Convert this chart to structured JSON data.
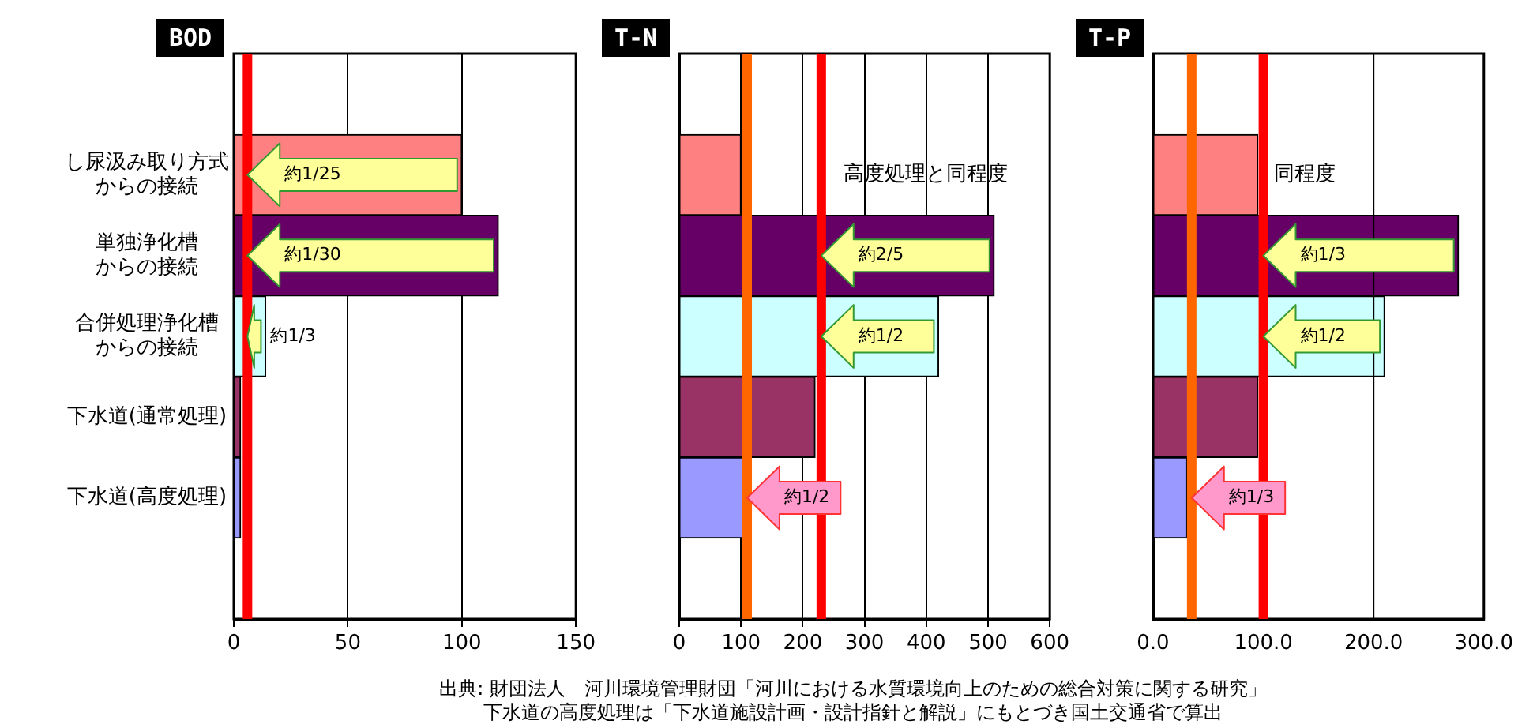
{
  "chart_data": [
    {
      "type": "bar",
      "title": "BOD",
      "orientation": "horizontal",
      "categories": [
        "し尿汲み取り方式からの接続",
        "単独浄化槽からの接続",
        "合併処理浄化槽からの接続",
        "下水道(通常処理)",
        "下水道(高度処理)"
      ],
      "values": [
        100,
        116,
        14,
        3,
        3
      ],
      "colors": [
        "#ff8080",
        "#660066",
        "#ccffff",
        "#993366",
        "#9999ff"
      ],
      "xlim": [
        0,
        150
      ],
      "xticks": [
        0,
        50,
        100,
        150
      ],
      "grid": "x",
      "legend": false,
      "ref_lines": [
        {
          "axis": "x",
          "value": 6,
          "color": "#ff0000"
        }
      ],
      "annotations": [
        {
          "text": "約1/25",
          "x": 6,
          "y": "し尿汲み取り方式からの接続"
        },
        {
          "text": "約1/30",
          "x": 6,
          "y": "単独浄化槽からの接続"
        },
        {
          "text": "約1/3",
          "x": 6,
          "y": "合併処理浄化槽からの接続"
        }
      ]
    },
    {
      "type": "bar",
      "title": "T-N",
      "orientation": "horizontal",
      "categories": [
        "し尿汲み取り方式からの接続",
        "単独浄化槽からの接続",
        "合併処理浄化槽からの接続",
        "下水道(通常処理)",
        "下水道(高度処理)"
      ],
      "values": [
        100,
        510,
        420,
        220,
        105
      ],
      "colors": [
        "#ff8080",
        "#660066",
        "#ccffff",
        "#993366",
        "#9999ff"
      ],
      "xlim": [
        0,
        600
      ],
      "xticks": [
        0,
        100,
        200,
        300,
        400,
        500,
        600
      ],
      "grid": "x",
      "legend": false,
      "tick_labels": "x",
      "ref_lines": [
        {
          "axis": "x",
          "value": 110,
          "color": "#ff6600"
        },
        {
          "axis": "x",
          "value": 230,
          "color": "#ff0000"
        }
      ],
      "annotations": [
        {
          "text": "高度処理と同程度",
          "x": 240,
          "y": "し尿汲み取り方式からの接続"
        },
        {
          "text": "約2/5",
          "x": 230,
          "y": "単独浄化槽からの接続"
        },
        {
          "text": "約1/2",
          "x": 230,
          "y": "合併処理浄化槽からの接続"
        },
        {
          "text": "約1/2",
          "x": 110,
          "y": "下水道(高度処理)"
        },
        "出典: 財団法人　河川環境管理財団「河川における水質環境向上のための総合対策に関する研究」",
        "下水道の高度処理は「下水道施設計画・設計指針と解説」にもとづき国土交通省で算出"
      ]
    },
    {
      "type": "bar",
      "title": "T-P",
      "orientation": "horizontal",
      "categories": [
        "し尿汲み取り方式からの接続",
        "単独浄化槽からの接続",
        "合併処理浄化槽からの接続",
        "下水道(通常処理)",
        "下水道(高度処理)"
      ],
      "values": [
        95,
        277,
        210,
        95,
        31
      ],
      "colors": [
        "#ff8080",
        "#660066",
        "#ccffff",
        "#993366",
        "#9999ff"
      ],
      "xlim": [
        0,
        300
      ],
      "xticks": [
        {
          "value": 0,
          "label": "0.0"
        },
        {
          "value": 100,
          "label": "100.0"
        },
        {
          "value": 200,
          "label": "200.0"
        },
        {
          "value": 300,
          "label": "300.0"
        }
      ],
      "legend": false,
      "tick_labels": "x",
      "ref_lines": [
        {
          "axis": "x",
          "value": 35,
          "color": "#ff6600"
        },
        {
          "axis": "x",
          "value": 100,
          "color": "#ff0000"
        },
        {
          "axis": "x",
          "value": 200,
          "color": "#000000"
        }
      ],
      "annotations": [
        {
          "text": "同程度",
          "x": 95,
          "y": "し尿汲み取り方式からの接続"
        },
        {
          "text": "約1/3",
          "x": 100,
          "y": "単独浄化槽からの接続"
        },
        {
          "text": "約1/2",
          "x": 100,
          "y": "合併処理浄化槽からの接続"
        },
        {
          "text": "約1/3",
          "x": 35,
          "y": "下水道(高度処理)"
        }
      ]
    }
  ]
}
